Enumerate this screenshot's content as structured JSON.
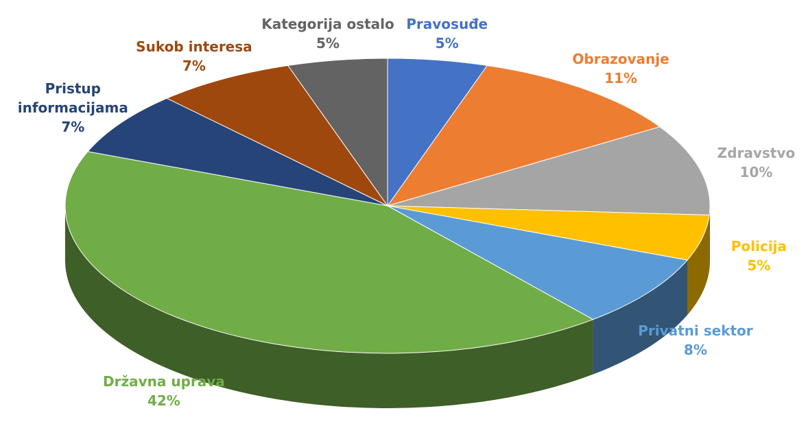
{
  "chart_data": {
    "type": "pie3d",
    "categories": [
      "Pravosuđe",
      "Obrazovanje",
      "Zdravstvo",
      "Policija",
      "Privatni sektor",
      "Državna uprava",
      "Pristup informacijama",
      "Sukob interesa",
      "Kategorija ostalo"
    ],
    "values": [
      5,
      11,
      10,
      5,
      8,
      42,
      7,
      7,
      5
    ],
    "value_labels": [
      "5%",
      "11%",
      "10%",
      "5%",
      "8%",
      "42%",
      "7%",
      "7%",
      "5%"
    ],
    "colors": [
      "#4472c4",
      "#ed7d31",
      "#a5a5a5",
      "#ffc000",
      "#5b9bd5",
      "#70ad47",
      "#264478",
      "#9e480e",
      "#636363"
    ]
  }
}
